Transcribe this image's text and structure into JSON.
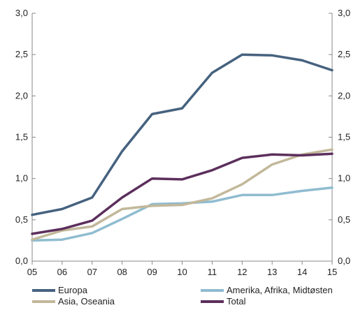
{
  "chart_data": {
    "type": "line",
    "x": [
      "05",
      "06",
      "07",
      "08",
      "09",
      "10",
      "11",
      "12",
      "13",
      "14",
      "15"
    ],
    "ylim": [
      0,
      3
    ],
    "yticks": [
      "0,0",
      "0,5",
      "1,0",
      "1,5",
      "2,0",
      "2,5",
      "3,0"
    ],
    "grid": false,
    "legend_position": "bottom",
    "series": [
      {
        "name": "Europa",
        "color": "#46627f",
        "values": [
          0.56,
          0.63,
          0.77,
          1.33,
          1.78,
          1.85,
          2.28,
          2.5,
          2.49,
          2.43,
          2.31
        ]
      },
      {
        "name": "Amerika, Afrika, Midtøsten",
        "color": "#8fbcd0",
        "values": [
          0.25,
          0.26,
          0.34,
          0.51,
          0.69,
          0.7,
          0.72,
          0.8,
          0.8,
          0.85,
          0.89
        ]
      },
      {
        "name": "Asia, Oseania",
        "color": "#c2b89a",
        "values": [
          0.26,
          0.37,
          0.42,
          0.63,
          0.67,
          0.68,
          0.76,
          0.93,
          1.17,
          1.29,
          1.35
        ]
      },
      {
        "name": "Total",
        "color": "#5c2f5c",
        "values": [
          0.33,
          0.39,
          0.49,
          0.77,
          1.0,
          0.99,
          1.1,
          1.25,
          1.29,
          1.28,
          1.3
        ]
      }
    ]
  }
}
